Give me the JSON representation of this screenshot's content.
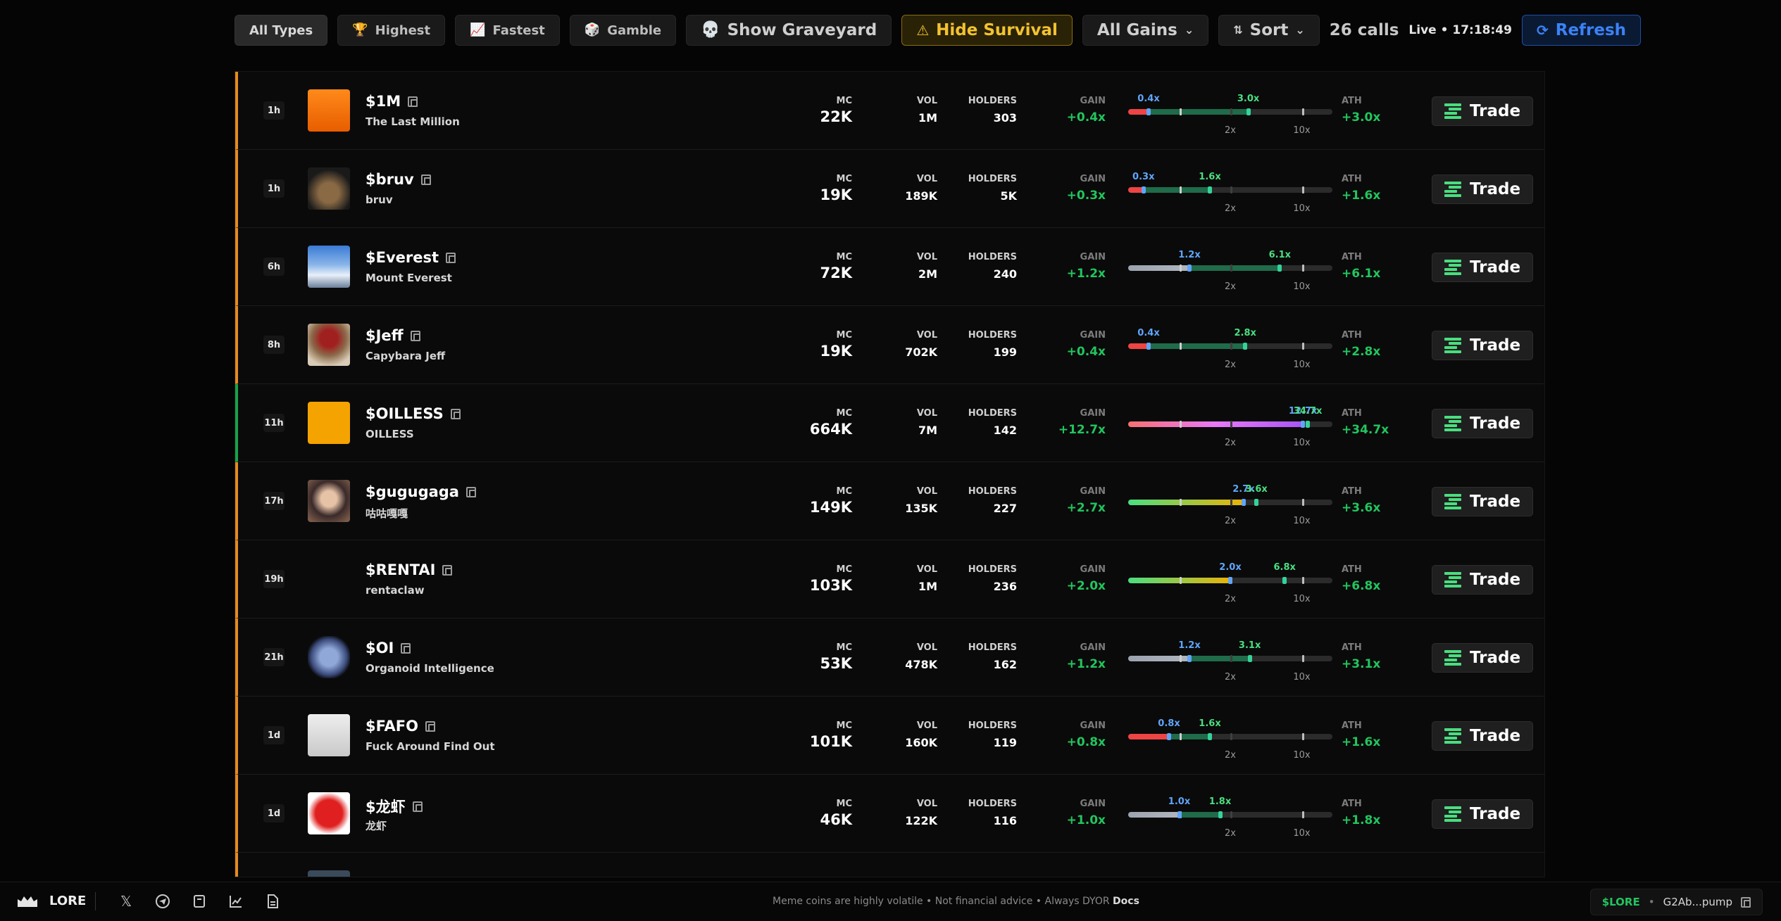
{
  "toolbar": {
    "filters": [
      {
        "label": "All Types",
        "icon": "none"
      },
      {
        "label": "Highest",
        "icon": "trophy-icon"
      },
      {
        "label": "Fastest",
        "icon": "chart-icon"
      },
      {
        "label": "Gamble",
        "icon": "dice-icon"
      }
    ],
    "graveyard_label": "Show Graveyard",
    "survival_label": "Hide Survival",
    "gains_select": "All Gains",
    "sort_label": "Sort",
    "calls_count": "26 calls",
    "live_status": "Live • 17:18:49",
    "refresh_label": "Refresh",
    "colors": {
      "warning": "#f2c230",
      "accent_blue": "#3b82f6",
      "gain_green": "#22c55e"
    }
  },
  "table": {
    "labels": {
      "mc": "MC",
      "vol": "VOL",
      "holders": "HOLDERS",
      "gain": "GAIN",
      "ath": "ATH",
      "trade": "Trade",
      "mark_2x": "2x",
      "mark_10x": "10x"
    },
    "rows": [
      {
        "age": "1h",
        "symbol": "$1M",
        "name": "The Last Million",
        "mc": "22K",
        "vol": "1M",
        "holders": "303",
        "gain": "+0.4x",
        "ath": "+3.0x",
        "gain_lbl": "0.4x",
        "ath_lbl": "3.0x",
        "gain_val": 0.4,
        "ath_val": 3.0,
        "accent": "orange"
      },
      {
        "age": "1h",
        "symbol": "$bruv",
        "name": "bruv",
        "mc": "19K",
        "vol": "189K",
        "holders": "5K",
        "gain": "+0.3x",
        "ath": "+1.6x",
        "gain_lbl": "0.3x",
        "ath_lbl": "1.6x",
        "gain_val": 0.3,
        "ath_val": 1.6,
        "accent": "orange"
      },
      {
        "age": "6h",
        "symbol": "$Everest",
        "name": "Mount Everest",
        "mc": "72K",
        "vol": "2M",
        "holders": "240",
        "gain": "+1.2x",
        "ath": "+6.1x",
        "gain_lbl": "1.2x",
        "ath_lbl": "6.1x",
        "gain_val": 1.2,
        "ath_val": 6.1,
        "accent": "orange"
      },
      {
        "age": "8h",
        "symbol": "$Jeff",
        "name": "Capybara Jeff",
        "mc": "19K",
        "vol": "702K",
        "holders": "199",
        "gain": "+0.4x",
        "ath": "+2.8x",
        "gain_lbl": "0.4x",
        "ath_lbl": "2.8x",
        "gain_val": 0.4,
        "ath_val": 2.8,
        "accent": "orange"
      },
      {
        "age": "11h",
        "symbol": "$OILLESS",
        "name": "OILLESS",
        "mc": "664K",
        "vol": "7M",
        "holders": "142",
        "gain": "+12.7x",
        "ath": "+34.7x",
        "gain_lbl": "12.7x",
        "ath_lbl": "34.7x",
        "gain_val": 12.7,
        "ath_val": 34.7,
        "accent": "green"
      },
      {
        "age": "17h",
        "symbol": "$gugugaga",
        "name": "咕咕嘎嘎",
        "mc": "149K",
        "vol": "135K",
        "holders": "227",
        "gain": "+2.7x",
        "ath": "+3.6x",
        "gain_lbl": "2.7x",
        "ath_lbl": "3.6x",
        "gain_val": 2.7,
        "ath_val": 3.6,
        "accent": "orange"
      },
      {
        "age": "19h",
        "symbol": "$RENTAI",
        "name": "rentaclaw",
        "mc": "103K",
        "vol": "1M",
        "holders": "236",
        "gain": "+2.0x",
        "ath": "+6.8x",
        "gain_lbl": "2.0x",
        "ath_lbl": "6.8x",
        "gain_val": 2.0,
        "ath_val": 6.8,
        "accent": "orange"
      },
      {
        "age": "21h",
        "symbol": "$OI",
        "name": "Organoid Intelligence",
        "mc": "53K",
        "vol": "478K",
        "holders": "162",
        "gain": "+1.2x",
        "ath": "+3.1x",
        "gain_lbl": "1.2x",
        "ath_lbl": "3.1x",
        "gain_val": 1.2,
        "ath_val": 3.1,
        "accent": "orange"
      },
      {
        "age": "1d",
        "symbol": "$FAFO",
        "name": "Fuck Around Find Out",
        "mc": "101K",
        "vol": "160K",
        "holders": "119",
        "gain": "+0.8x",
        "ath": "+1.6x",
        "gain_lbl": "0.8x",
        "ath_lbl": "1.6x",
        "gain_val": 0.8,
        "ath_val": 1.6,
        "accent": "orange"
      },
      {
        "age": "1d",
        "symbol": "$龙虾",
        "name": "龙虾",
        "mc": "46K",
        "vol": "122K",
        "holders": "116",
        "gain": "+1.0x",
        "ath": "+1.8x",
        "gain_lbl": "1.0x",
        "ath_lbl": "1.8x",
        "gain_val": 1.0,
        "ath_val": 1.8,
        "accent": "orange"
      }
    ]
  },
  "footer": {
    "brand": "LORE",
    "icons": [
      "x-icon",
      "telegram-icon",
      "book-icon",
      "chart-icon",
      "document-icon"
    ],
    "disclaimer": "Meme coins are highly volatile • Not financial advice • Always DYOR",
    "docs_link": "Docs",
    "token": "$LORE",
    "contract": "G2Ab...pump"
  }
}
